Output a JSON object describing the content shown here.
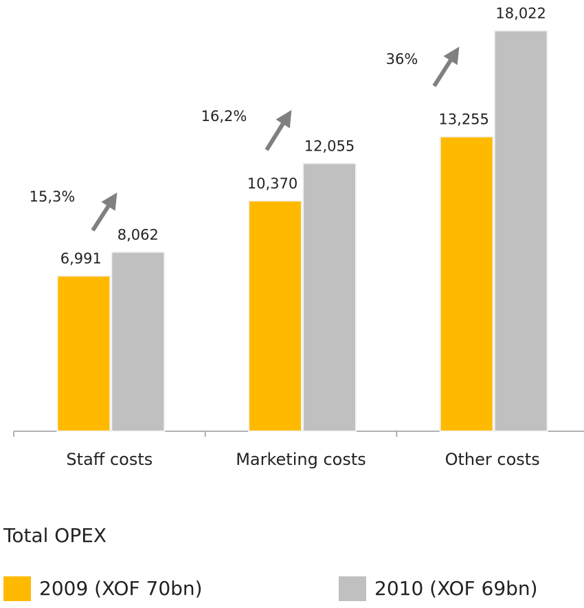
{
  "chart_data": {
    "type": "bar",
    "categories": [
      "Staff costs",
      "Marketing costs",
      "Other costs"
    ],
    "series": [
      {
        "name": "2009 (XOF 70bn)",
        "color": "#FFBA00",
        "values": [
          6991,
          10370,
          13255
        ],
        "value_labels": [
          "6,991",
          "10,370",
          "13,255"
        ]
      },
      {
        "name": "2010 (XOF 69bn)",
        "color": "#C0C0C0",
        "values": [
          8062,
          12055,
          18022
        ],
        "value_labels": [
          "8,062",
          "12,055",
          "18,022"
        ]
      }
    ],
    "ylim": [
      0,
      19000
    ],
    "legend_title": "Total OPEX",
    "legend": "bottom",
    "annotations": [
      "15,3%",
      "16,2%",
      "36%"
    ]
  }
}
